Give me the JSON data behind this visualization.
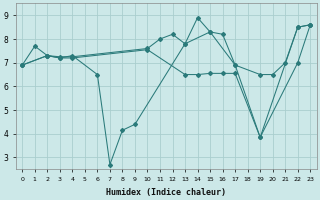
{
  "xlabel": "Humidex (Indice chaleur)",
  "xlim": [
    -0.5,
    23.5
  ],
  "ylim": [
    2.5,
    9.5
  ],
  "xticks": [
    0,
    1,
    2,
    3,
    4,
    5,
    6,
    7,
    8,
    9,
    10,
    11,
    12,
    13,
    14,
    15,
    16,
    17,
    18,
    19,
    20,
    21,
    22,
    23
  ],
  "yticks": [
    3,
    4,
    5,
    6,
    7,
    8,
    9
  ],
  "bg_color": "#cce8e8",
  "grid_color": "#aacece",
  "line_color": "#2a7a7a",
  "line1_x": [
    0,
    1,
    2,
    3,
    4,
    6,
    7,
    8,
    9,
    13,
    15,
    17,
    19,
    22,
    23
  ],
  "line1_y": [
    6.9,
    7.7,
    7.3,
    7.2,
    7.3,
    6.5,
    2.7,
    4.15,
    4.4,
    7.8,
    8.3,
    6.9,
    3.85,
    8.5,
    8.6
  ],
  "line2_x": [
    0,
    2,
    3,
    4,
    10,
    11,
    12,
    13,
    14,
    15,
    16,
    17,
    19,
    20,
    21,
    22,
    23
  ],
  "line2_y": [
    6.9,
    7.3,
    7.25,
    7.25,
    7.6,
    8.0,
    8.2,
    7.8,
    8.9,
    8.3,
    8.2,
    6.9,
    6.5,
    6.5,
    7.0,
    8.5,
    8.6
  ],
  "line3_x": [
    0,
    2,
    3,
    4,
    10,
    13,
    14,
    15,
    16,
    17,
    19,
    22,
    23
  ],
  "line3_y": [
    6.9,
    7.3,
    7.2,
    7.2,
    7.55,
    6.5,
    6.5,
    6.55,
    6.55,
    6.55,
    3.85,
    7.0,
    8.6
  ]
}
